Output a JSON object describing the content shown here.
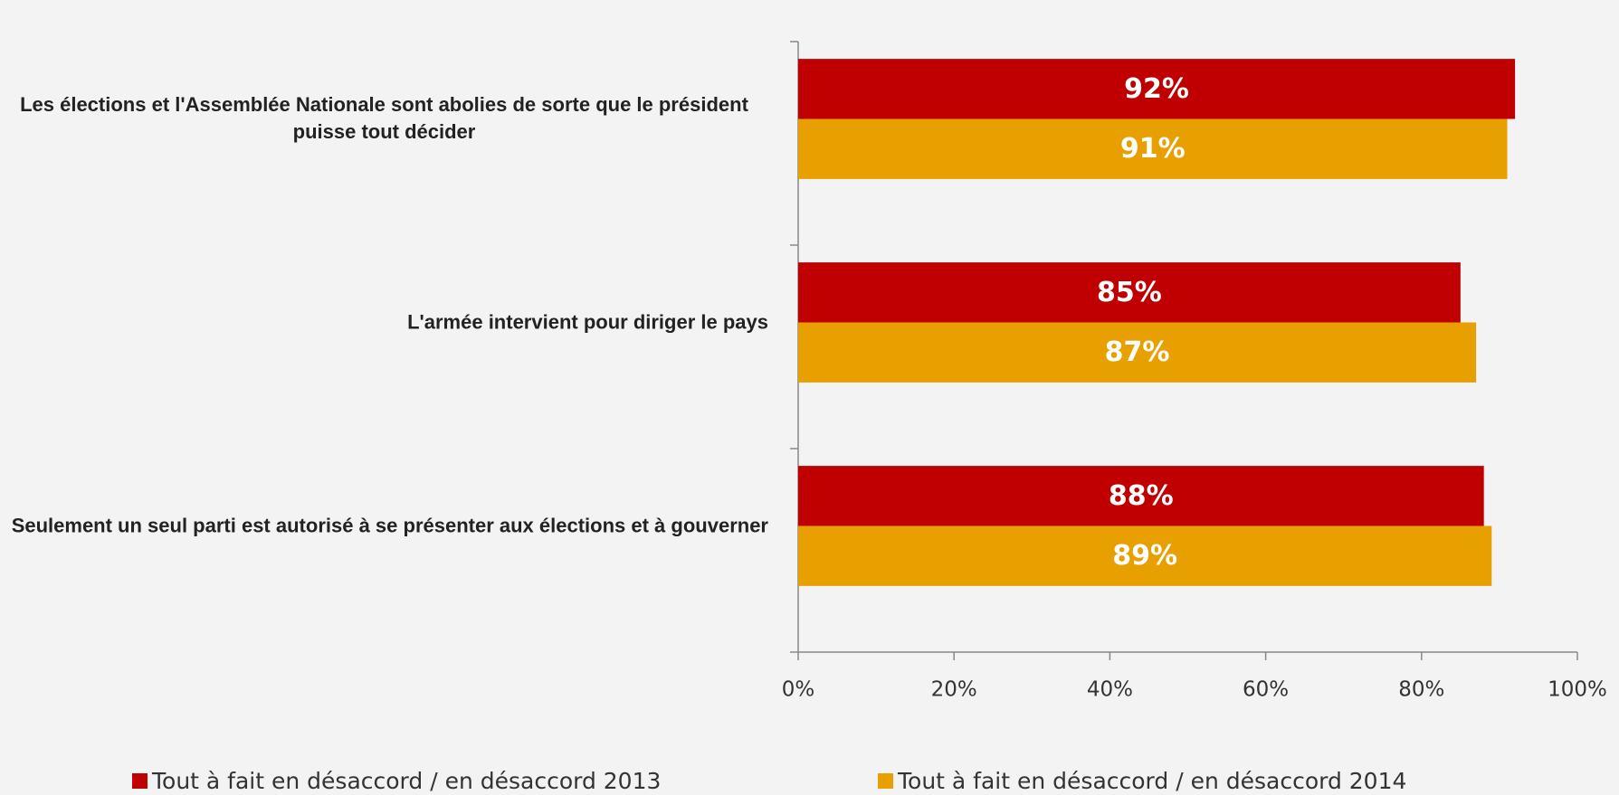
{
  "chart_data": {
    "type": "barh",
    "categories": [
      "Les élections et l'Assemblée Nationale sont abolies de sorte que le président puisse tout décider",
      "L'armée intervient pour diriger le pays",
      "Seulement un seul parti est autorisé à se présenter aux élections et à gouverner"
    ],
    "series": [
      {
        "name": "Tout à fait en désaccord / en désaccord 2013",
        "color": "#c00000",
        "values": [
          92,
          85,
          88
        ],
        "value_labels": [
          "92%",
          "85%",
          "88%"
        ]
      },
      {
        "name": "Tout à fait en désaccord / en désaccord 2014",
        "color": "#e89f00",
        "values": [
          91,
          87,
          89
        ],
        "value_labels": [
          "91%",
          "87%",
          "89%"
        ]
      }
    ],
    "xlim": [
      0,
      100
    ],
    "xticks": [
      {
        "value": 0,
        "label": "0%"
      },
      {
        "value": 20,
        "label": "20%"
      },
      {
        "value": 40,
        "label": "40%"
      },
      {
        "value": 60,
        "label": "60%"
      },
      {
        "value": 80,
        "label": "80%"
      },
      {
        "value": 100,
        "label": "100%"
      }
    ],
    "legend": "bottom"
  }
}
